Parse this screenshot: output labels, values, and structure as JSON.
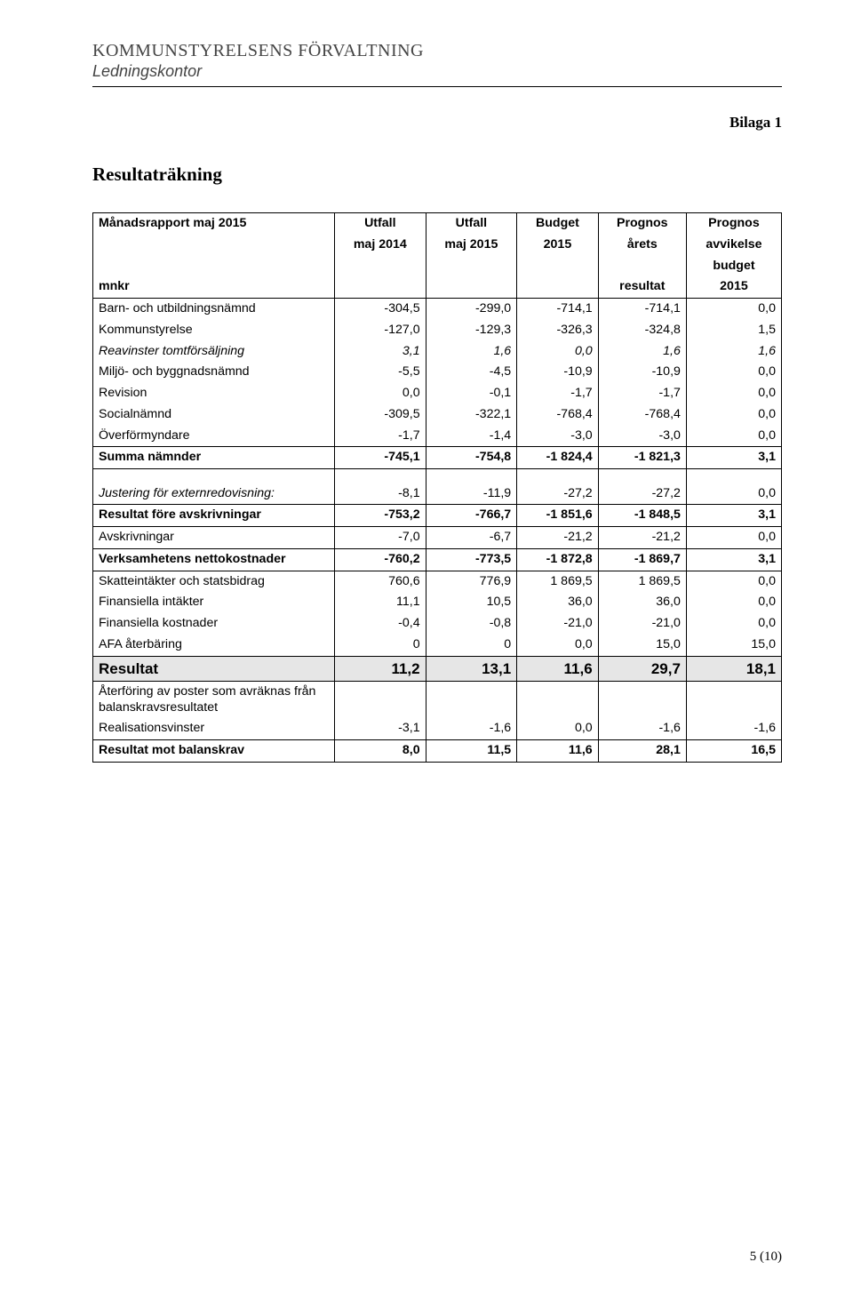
{
  "letterhead": {
    "org": "KOMMUNSTYRELSENS FÖRVALTNING",
    "dept": "Ledningskontor"
  },
  "appendix": "Bilaga 1",
  "title": "Resultaträkning",
  "report_label": "Månadsrapport maj 2015",
  "mnkr": "mnkr",
  "headers": {
    "c1a": "Utfall",
    "c1b": "maj 2014",
    "c2a": "Utfall",
    "c2b": "maj 2015",
    "c3a": "Budget",
    "c3b": "2015",
    "c4a": "Prognos",
    "c4b": "årets",
    "c4c": "resultat",
    "c5a": "Prognos",
    "c5b": "avvikelse",
    "c5c": "budget",
    "c5d": "2015"
  },
  "rows": {
    "r0": {
      "label": "Barn- och utbildningsnämnd",
      "v": [
        "-304,5",
        "-299,0",
        "-714,1",
        "-714,1",
        "0,0"
      ]
    },
    "r1": {
      "label": "Kommunstyrelse",
      "v": [
        "-127,0",
        "-129,3",
        "-326,3",
        "-324,8",
        "1,5"
      ]
    },
    "r2": {
      "label": "Reavinster tomtförsäljning",
      "v": [
        "3,1",
        "1,6",
        "0,0",
        "1,6",
        "1,6"
      ]
    },
    "r3": {
      "label": "Miljö- och byggnadsnämnd",
      "v": [
        "-5,5",
        "-4,5",
        "-10,9",
        "-10,9",
        "0,0"
      ]
    },
    "r4": {
      "label": "Revision",
      "v": [
        "0,0",
        "-0,1",
        "-1,7",
        "-1,7",
        "0,0"
      ]
    },
    "r5": {
      "label": "Socialnämnd",
      "v": [
        "-309,5",
        "-322,1",
        "-768,4",
        "-768,4",
        "0,0"
      ]
    },
    "r6": {
      "label": "Överförmyndare",
      "v": [
        "-1,7",
        "-1,4",
        "-3,0",
        "-3,0",
        "0,0"
      ]
    },
    "r7": {
      "label": "Summa nämnder",
      "v": [
        "-745,1",
        "-754,8",
        "-1 824,4",
        "-1 821,3",
        "3,1"
      ]
    },
    "r8": {
      "label": "Justering för externredovisning:",
      "v": [
        "-8,1",
        "-11,9",
        "-27,2",
        "-27,2",
        "0,0"
      ]
    },
    "r9": {
      "label": "Resultat före avskrivningar",
      "v": [
        "-753,2",
        "-766,7",
        "-1 851,6",
        "-1 848,5",
        "3,1"
      ]
    },
    "r10": {
      "label": "Avskrivningar",
      "v": [
        "-7,0",
        "-6,7",
        "-21,2",
        "-21,2",
        "0,0"
      ]
    },
    "r11": {
      "label": "Verksamhetens nettokostnader",
      "v": [
        "-760,2",
        "-773,5",
        "-1 872,8",
        "-1 869,7",
        "3,1"
      ]
    },
    "r12": {
      "label": "Skatteintäkter och statsbidrag",
      "v": [
        "760,6",
        "776,9",
        "1 869,5",
        "1 869,5",
        "0,0"
      ]
    },
    "r13": {
      "label": "Finansiella intäkter",
      "v": [
        "11,1",
        "10,5",
        "36,0",
        "36,0",
        "0,0"
      ]
    },
    "r14": {
      "label": "Finansiella kostnader",
      "v": [
        "-0,4",
        "-0,8",
        "-21,0",
        "-21,0",
        "0,0"
      ]
    },
    "r15": {
      "label": "AFA återbäring",
      "v": [
        "0",
        "0",
        "0,0",
        "15,0",
        "15,0"
      ]
    },
    "r16": {
      "label": "Resultat",
      "v": [
        "11,2",
        "13,1",
        "11,6",
        "29,7",
        "18,1"
      ]
    },
    "r17": {
      "label": "Återföring av poster som avräknas från balanskravsresultatet",
      "v": [
        "",
        "",
        "",
        "",
        ""
      ]
    },
    "r18": {
      "label": "Realisationsvinster",
      "v": [
        "-3,1",
        "-1,6",
        "0,0",
        "-1,6",
        "-1,6"
      ]
    },
    "r19": {
      "label": "Resultat mot balanskrav",
      "v": [
        "8,0",
        "11,5",
        "11,6",
        "28,1",
        "16,5"
      ]
    }
  },
  "page_num": "5 (10)"
}
